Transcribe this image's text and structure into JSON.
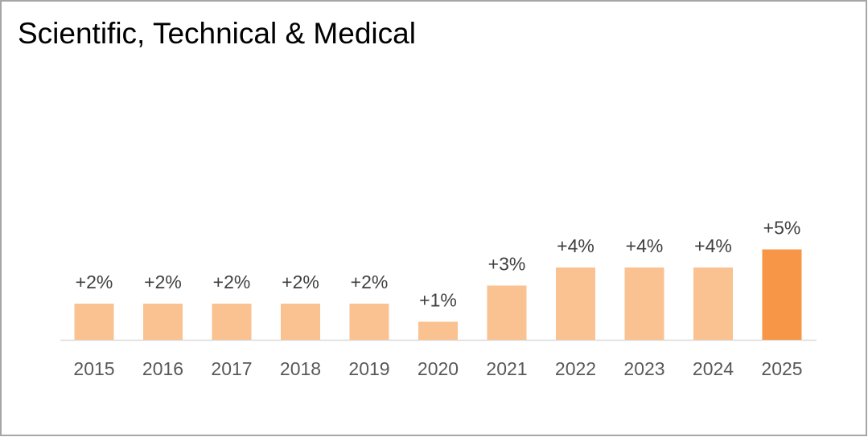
{
  "chart_data": {
    "type": "bar",
    "title": "Scientific, Technical & Medical",
    "categories": [
      "2015",
      "2016",
      "2017",
      "2018",
      "2019",
      "2020",
      "2021",
      "2022",
      "2023",
      "2024",
      "2025"
    ],
    "values": [
      2,
      2,
      2,
      2,
      2,
      1,
      3,
      4,
      4,
      4,
      5
    ],
    "value_labels": [
      "+2%",
      "+2%",
      "+2%",
      "+2%",
      "+2%",
      "+1%",
      "+3%",
      "+4%",
      "+4%",
      "+4%",
      "+5%"
    ],
    "colors": [
      "#f9c290",
      "#f9c290",
      "#f9c290",
      "#f9c290",
      "#f9c290",
      "#f9c290",
      "#f9c290",
      "#f9c290",
      "#f9c290",
      "#f9c290",
      "#f79646"
    ]
  }
}
